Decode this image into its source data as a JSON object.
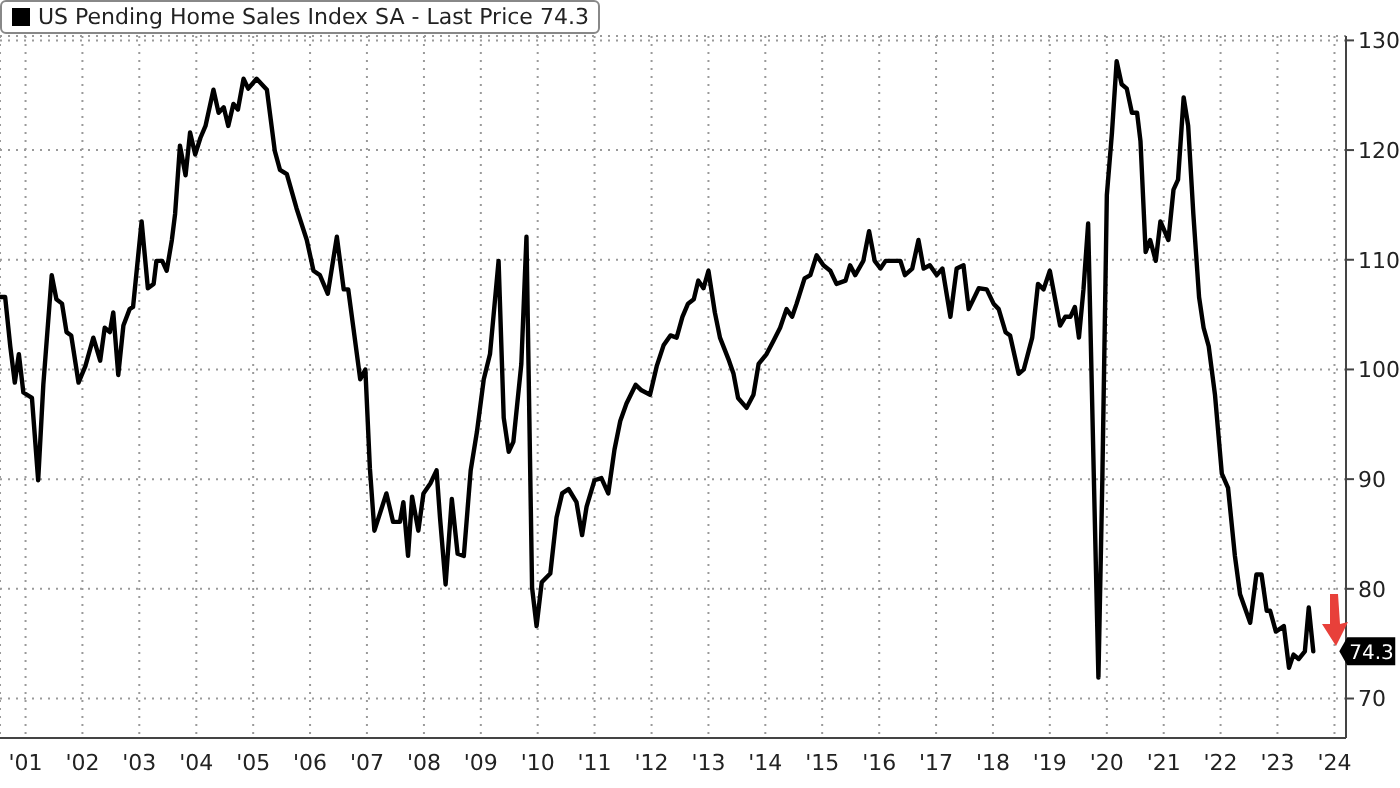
{
  "chart_data": {
    "type": "line",
    "x": [
      "2001-01-19",
      "2001-02-21",
      "2001-03-26",
      "2001-04-24",
      "2001-05-20",
      "2001-06-18",
      "2001-08-12",
      "2001-09-21",
      "2001-10-24",
      "2001-12-17",
      "2002-01-16",
      "2002-02-21",
      "2002-03-22",
      "2002-04-21",
      "2002-06-07",
      "2002-07-21",
      "2002-09-10",
      "2002-10-24",
      "2002-11-22",
      "2002-12-25",
      "2003-01-16",
      "2003-02-17",
      "2003-03-22",
      "2003-05-01",
      "2003-05-23",
      "2003-07-17",
      "2003-08-26",
      "2003-10-02",
      "2003-10-20",
      "2003-11-26",
      "2003-12-25",
      "2004-01-27",
      "2004-02-17",
      "2004-03-19",
      "2004-04-24",
      "2004-05-23",
      "2004-06-25",
      "2004-07-28",
      "2004-08-30",
      "2004-10-20",
      "2004-11-22",
      "2004-12-25",
      "2005-01-23",
      "2005-02-25",
      "2005-03-26",
      "2005-05-01",
      "2005-05-31",
      "2005-07-24",
      "2005-09-28",
      "2005-11-18",
      "2005-12-21",
      "2006-02-03",
      "2006-04-06",
      "2006-06-11",
      "2006-07-24",
      "2006-09-03",
      "2006-10-24",
      "2006-12-21",
      "2007-02-03",
      "2007-03-04",
      "2007-04-06",
      "2007-05-20",
      "2007-06-22",
      "2007-07-21",
      "2007-08-19",
      "2007-11-04",
      "2007-12-17",
      "2008-01-30",
      "2008-02-21",
      "2008-03-22",
      "2008-04-17",
      "2008-05-27",
      "2008-06-29",
      "2008-08-12",
      "2008-09-21",
      "2008-10-13",
      "2008-11-18",
      "2008-12-28",
      "2009-02-03",
      "2009-03-15",
      "2009-04-28",
      "2009-06-07",
      "2009-07-21",
      "2009-08-30",
      "2009-10-24",
      "2009-11-26",
      "2009-12-28",
      "2010-01-27",
      "2010-03-19",
      "2010-04-21",
      "2010-05-27",
      "2010-06-25",
      "2010-07-28",
      "2010-09-21",
      "2010-10-31",
      "2010-12-06",
      "2011-01-16",
      "2011-03-08",
      "2011-04-13",
      "2011-05-12",
      "2011-07-02",
      "2011-08-15",
      "2011-09-28",
      "2011-11-07",
      "2011-12-14",
      "2012-01-23",
      "2012-03-22",
      "2012-04-28",
      "2012-06-22",
      "2012-08-04",
      "2012-09-17",
      "2012-10-31",
      "2012-12-10",
      "2013-01-16",
      "2013-02-21",
      "2013-03-30",
      "2013-04-28",
      "2013-05-31",
      "2013-07-02",
      "2013-08-12",
      "2013-09-14",
      "2013-11-11",
      "2013-12-10",
      "2014-01-08",
      "2014-03-04",
      "2014-04-17",
      "2014-05-20",
      "2014-07-10",
      "2014-08-23",
      "2014-10-05",
      "2014-11-15",
      "2014-12-21",
      "2015-01-19",
      "2015-03-11",
      "2015-04-17",
      "2015-05-27",
      "2015-07-10",
      "2015-08-23",
      "2015-10-02",
      "2015-11-29",
      "2015-12-28",
      "2016-01-30",
      "2016-03-22",
      "2016-04-28",
      "2016-06-03",
      "2016-07-10",
      "2016-08-12",
      "2016-11-15",
      "2016-12-14",
      "2017-01-30",
      "2017-03-11",
      "2017-04-13",
      "2017-05-23",
      "2017-07-06",
      "2017-08-12",
      "2017-10-02",
      "2017-11-11",
      "2017-12-25",
      "2018-01-27",
      "2018-04-02",
      "2018-05-23",
      "2018-07-06",
      "2018-08-08",
      "2018-09-21",
      "2018-10-20",
      "2018-12-14",
      "2019-01-16",
      "2019-03-11",
      "2019-04-17",
      "2019-05-23",
      "2019-07-02",
      "2019-09-06",
      "2019-10-09",
      "2019-11-11",
      "2019-12-10",
      "2020-01-05",
      "2020-02-03",
      "2020-03-04",
      "2020-04-10",
      "2020-05-09",
      "2020-06-03",
      "2020-07-02",
      "2020-08-04",
      "2020-09-03",
      "2020-10-05",
      "2020-11-07",
      "2020-12-10",
      "2021-01-12",
      "2021-02-03",
      "2021-03-08",
      "2021-04-06",
      "2021-05-12",
      "2021-06-11",
      "2021-08-01",
      "2021-09-03",
      "2021-10-02",
      "2021-11-07",
      "2021-12-06",
      "2022-01-08",
      "2022-02-14",
      "2022-03-15",
      "2022-04-17",
      "2022-05-27",
      "2022-07-10",
      "2022-08-19",
      "2022-10-02",
      "2022-11-04",
      "2023-01-08",
      "2023-02-17",
      "2023-03-22",
      "2023-04-24",
      "2023-05-16",
      "2023-06-22",
      "2023-08-12",
      "2023-09-14",
      "2023-10-13",
      "2023-11-15",
      "2023-12-25",
      "2024-01-19",
      "2024-02-17"
    ],
    "series": [
      {
        "name": "US Pending Home Sales Index SA - Last Price 74.3",
        "color": "#000000",
        "values": [
          106.6,
          106.6,
          102.1,
          98.8,
          101.4,
          97.9,
          97.4,
          89.9,
          98.6,
          108.6,
          106.4,
          106.0,
          103.4,
          103.1,
          98.8,
          100.3,
          102.9,
          100.8,
          103.8,
          103.4,
          105.2,
          99.5,
          104.0,
          105.5,
          105.7,
          113.5,
          107.4,
          107.8,
          109.9,
          109.9,
          109.0,
          111.8,
          114.2,
          120.4,
          117.7,
          121.6,
          119.6,
          121.1,
          122.2,
          125.5,
          123.4,
          123.9,
          122.2,
          124.2,
          123.7,
          126.5,
          125.6,
          126.5,
          125.5,
          119.9,
          118.2,
          117.8,
          114.7,
          111.8,
          109.0,
          108.6,
          106.9,
          112.1,
          107.3,
          107.3,
          103.8,
          99.1,
          100.0,
          91.0,
          85.3,
          88.7,
          86.1,
          86.1,
          87.9,
          83.0,
          88.4,
          85.3,
          88.7,
          89.6,
          90.8,
          86.5,
          80.4,
          88.2,
          83.2,
          83.0,
          90.8,
          94.3,
          99.1,
          101.4,
          109.9,
          95.6,
          92.5,
          93.4,
          100.5,
          112.1,
          80.1,
          76.6,
          80.6,
          81.4,
          86.5,
          88.7,
          89.1,
          87.9,
          84.9,
          87.5,
          89.9,
          90.1,
          88.7,
          92.7,
          95.3,
          96.9,
          98.6,
          98.1,
          97.7,
          100.3,
          102.2,
          103.1,
          102.9,
          104.8,
          106.0,
          106.4,
          108.1,
          107.4,
          109.0,
          105.2,
          102.9,
          100.8,
          99.6,
          97.4,
          96.5,
          97.7,
          100.5,
          101.4,
          102.6,
          103.8,
          105.5,
          104.8,
          106.0,
          108.3,
          108.6,
          110.4,
          109.5,
          109.0,
          107.8,
          108.1,
          109.5,
          108.6,
          109.9,
          112.6,
          109.9,
          109.2,
          109.9,
          109.9,
          108.6,
          109.2,
          111.8,
          109.2,
          109.5,
          108.6,
          109.2,
          104.8,
          109.2,
          109.5,
          105.5,
          107.4,
          107.3,
          106.0,
          105.5,
          103.4,
          103.1,
          99.6,
          100.0,
          102.9,
          107.8,
          107.3,
          109.0,
          104.0,
          104.8,
          104.8,
          105.7,
          102.9,
          107.3,
          113.3,
          89.9,
          71.9,
          89.9,
          115.9,
          121.6,
          128.1,
          126.0,
          125.6,
          123.4,
          123.4,
          120.8,
          110.7,
          111.8,
          109.9,
          113.5,
          111.8,
          116.4,
          117.3,
          124.8,
          122.2,
          114.2,
          106.6,
          103.8,
          102.1,
          97.7,
          90.5,
          89.2,
          83.0,
          79.5,
          76.9,
          81.3,
          81.3,
          78.0,
          78.0,
          76.1,
          76.6,
          72.8,
          74.0,
          73.6,
          74.3,
          78.3,
          74.3
        ]
      }
    ],
    "xlim": [
      "2001-01-19",
      "2024-09-14"
    ],
    "xticks": [
      {
        "value": "2001-07-02",
        "label": "'01"
      },
      {
        "value": "2002-07-02",
        "label": "'02"
      },
      {
        "value": "2003-07-02",
        "label": "'03"
      },
      {
        "value": "2004-07-02",
        "label": "'04"
      },
      {
        "value": "2005-07-02",
        "label": "'05"
      },
      {
        "value": "2006-07-02",
        "label": "'06"
      },
      {
        "value": "2007-07-02",
        "label": "'07"
      },
      {
        "value": "2008-07-02",
        "label": "'08"
      },
      {
        "value": "2009-07-02",
        "label": "'09"
      },
      {
        "value": "2010-07-02",
        "label": "'10"
      },
      {
        "value": "2011-07-02",
        "label": "'11"
      },
      {
        "value": "2012-07-02",
        "label": "'12"
      },
      {
        "value": "2013-07-02",
        "label": "'13"
      },
      {
        "value": "2014-07-02",
        "label": "'14"
      },
      {
        "value": "2015-07-02",
        "label": "'15"
      },
      {
        "value": "2016-07-02",
        "label": "'16"
      },
      {
        "value": "2017-07-02",
        "label": "'17"
      },
      {
        "value": "2018-07-02",
        "label": "'18"
      },
      {
        "value": "2019-07-02",
        "label": "'19"
      },
      {
        "value": "2020-07-02",
        "label": "'20"
      },
      {
        "value": "2021-07-02",
        "label": "'21"
      },
      {
        "value": "2022-07-02",
        "label": "'22"
      },
      {
        "value": "2023-07-02",
        "label": "'23"
      },
      {
        "value": "2024-07-02",
        "label": "'24"
      }
    ],
    "ylim": [
      66.4,
      130.4
    ],
    "yticks": [
      70,
      80,
      90,
      100,
      110,
      120,
      130
    ],
    "grid": true,
    "legend": "top left",
    "marker": "none",
    "line_style": "solid",
    "annotations": [
      {
        "text": "74.3",
        "x": "2024-02-17",
        "y": 74.3
      }
    ]
  }
}
